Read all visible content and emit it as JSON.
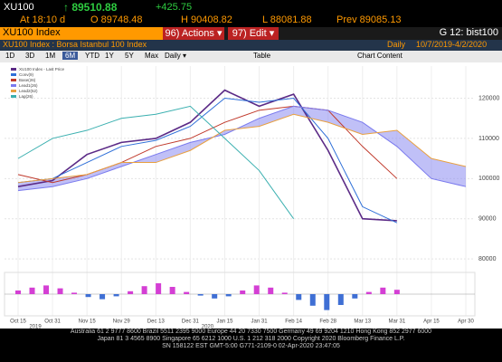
{
  "header": {
    "ticker": "XU100",
    "last": "↑ 89510.88",
    "change": "+425.75",
    "time": "At 18:10 d",
    "open": "O 89748.48",
    "high": "H 90408.82",
    "low": "L 88081.88",
    "prev": "Prev 89085.13"
  },
  "command_bar": {
    "security": "XU100 Index",
    "actions": "96) Actions ▾",
    "edit": "97) Edit ▾",
    "group": "G 12: bist100"
  },
  "title_bar": {
    "title": "XU100 Index : Borsa Istanbul 100 Index",
    "frequency": "Daily",
    "range": "10/7/2019-4/2/2020"
  },
  "toolbar": {
    "buttons": [
      "1D",
      "3D",
      "1M",
      "6M",
      "YTD",
      "1Y",
      "5Y",
      "Max"
    ],
    "period": "Daily ▾",
    "table": "Table",
    "content": "Chart Content"
  },
  "chart": {
    "type": "line",
    "categories": [
      "Oct 15",
      "Oct 31",
      "Nov 15",
      "Nov 29",
      "Dec 13",
      "Dec 31",
      "Jan 15",
      "Jan 31",
      "Feb 14",
      "Feb 28",
      "Mar 13",
      "Mar 31",
      "Apr 15",
      "Apr 30"
    ],
    "years": [
      "2019",
      "2020"
    ],
    "ylim": [
      78000,
      128000
    ],
    "yticks": [
      80000,
      90000,
      100000,
      110000,
      120000
    ],
    "series": [
      {
        "name": "XU100 Index - Last Price",
        "color": "#5b2a86",
        "values": [
          98000,
          99500,
          106000,
          109000,
          110000,
          114000,
          122000,
          118000,
          121000,
          107000,
          90000,
          89510.88,
          null,
          null
        ]
      },
      {
        "name": "Conv(9)",
        "color": "#2e6fd8",
        "values": [
          99000,
          100000,
          104000,
          108000,
          109500,
          113000,
          120000,
          119000,
          120000,
          110000,
          93000,
          89000,
          null,
          null
        ]
      },
      {
        "name": "Base(26)",
        "color": "#c0392b",
        "values": [
          101000,
          99000,
          101000,
          104000,
          108000,
          110000,
          114000,
          117000,
          118000,
          117000,
          108000,
          100000,
          null,
          null
        ]
      },
      {
        "name": "Lead1(26)",
        "color": "#7a7aee",
        "values": [
          97000,
          98000,
          100000,
          103000,
          106000,
          109000,
          111000,
          115000,
          118000,
          117000,
          114000,
          108000,
          100000,
          98000
        ]
      },
      {
        "name": "Lead2(52)",
        "color": "#e8a040",
        "values": [
          99000,
          100000,
          101000,
          104000,
          104000,
          107000,
          112000,
          113000,
          116000,
          114000,
          111000,
          112000,
          105000,
          103000
        ]
      },
      {
        "name": "Lag(26)",
        "color": "#3bb0b0",
        "values": [
          105000,
          110000,
          112000,
          115000,
          116000,
          118000,
          110000,
          102000,
          90000,
          null,
          null,
          null,
          null,
          null
        ]
      }
    ],
    "oscillator": {
      "color_up": "#d43fd4",
      "color_down": "#3f6fd4",
      "ylim": [
        -3000,
        3000
      ],
      "values": [
        500,
        900,
        1200,
        800,
        200,
        -400,
        -700,
        -300,
        400,
        1100,
        1500,
        1000,
        300,
        -200,
        -600,
        -300,
        500,
        1200,
        900,
        200,
        -800,
        -1600,
        -2200,
        -1500,
        -600,
        300,
        900,
        600
      ]
    }
  },
  "footer": {
    "line1": "Australia 61 2 9777 8600 Brazil 5511 2395 9000 Europe 44 20 7330 7500 Germany 49 69 9204 1210 Hong Kong 852 2977 6000",
    "line2": "Japan 81 3 4565 8900 Singapore 65 6212 1000 U.S. 1 212 318 2000 Copyright 2020 Bloomberg Finance L.P.",
    "line3": "SN 158122 EST GMT-5:00 G771-2109-0 02-Apr-2020 23:47:05"
  }
}
